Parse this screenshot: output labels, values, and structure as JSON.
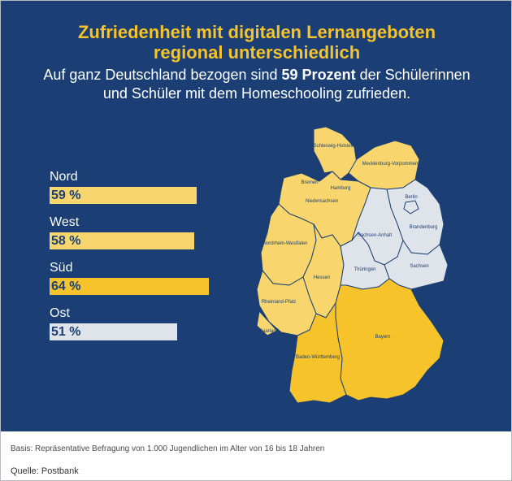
{
  "title": [
    "Zufriedenheit mit digitalen Lernangeboten",
    "regional unterschiedlich"
  ],
  "subtitle": {
    "line1_pre": "Auf ganz Deutschland bezogen sind ",
    "line1_bold": "59 Prozent",
    "line1_post": " der Schülerinnen",
    "line2": "und Schüler mit dem Homeschooling zufrieden."
  },
  "chart_data": {
    "type": "bar",
    "categories": [
      "Nord",
      "West",
      "Süd",
      "Ost"
    ],
    "values": [
      59,
      58,
      64,
      51
    ],
    "value_labels": [
      "59 %",
      "58 %",
      "64 %",
      "51 %"
    ],
    "bar_colors": [
      "#f8d66d",
      "#f8d66d",
      "#f6c32a",
      "#dfe3ea"
    ]
  },
  "map": {
    "states": [
      "Schleswig-Holstein",
      "Mecklenburg-Vorpommern",
      "Bremen",
      "Hamburg",
      "Niedersachsen",
      "Berlin",
      "Brandenburg",
      "Sachsen-Anhalt",
      "Nordrhein-Westfalen",
      "Hessen",
      "Thüringen",
      "Sachsen",
      "Rheinland-Pfalz",
      "Saarland",
      "Baden-Württemberg",
      "Bayern"
    ]
  },
  "colors": {
    "background": "#1b3f74",
    "accent": "#f6c32a",
    "light_yellow": "#f8d66d",
    "grey": "#dfe3ea"
  },
  "footer": {
    "basis": "Basis: Repräsentative Befragung von 1.000 Jugendlichen im Alter von 16 bis 18 Jahren",
    "source": "Quelle: Postbank"
  }
}
